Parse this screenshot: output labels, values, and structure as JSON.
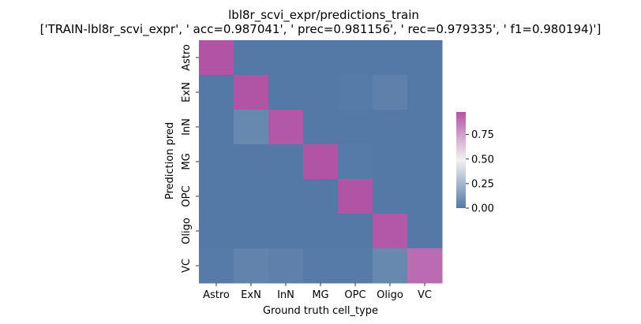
{
  "chart_data": {
    "type": "heatmap",
    "title": "lbl8r_scvi_expr/predictions_train",
    "subtitle": "['TRAIN-lbl8r_scvi_expr', ' acc=0.987041', '  prec=0.981156', ' rec=0.979335', ' f1=0.980194)']",
    "xlabel": "Ground truth cell_type",
    "ylabel": "Prediction pred",
    "x_categories": [
      "Astro",
      "ExN",
      "InN",
      "MG",
      "OPC",
      "Oligo",
      "VC"
    ],
    "y_categories": [
      "Astro",
      "ExN",
      "InN",
      "MG",
      "OPC",
      "Oligo",
      "VC"
    ],
    "values": [
      [
        0.99,
        0.0,
        0.0,
        0.0,
        0.0,
        0.0,
        0.0
      ],
      [
        0.0,
        0.98,
        0.0,
        0.0,
        0.01,
        0.03,
        0.0
      ],
      [
        0.0,
        0.06,
        0.97,
        0.0,
        0.0,
        0.0,
        0.0
      ],
      [
        0.0,
        0.0,
        0.0,
        0.99,
        0.01,
        0.0,
        0.0
      ],
      [
        0.0,
        0.0,
        0.0,
        0.0,
        0.98,
        0.0,
        0.0
      ],
      [
        0.0,
        0.0,
        0.0,
        0.0,
        0.0,
        0.97,
        0.0
      ],
      [
        0.01,
        0.04,
        0.03,
        0.01,
        0.01,
        0.06,
        0.91
      ]
    ],
    "colorbar": {
      "range": [
        0,
        0.98
      ],
      "ticks": [
        0.0,
        0.25,
        0.5,
        0.75
      ],
      "tick_labels": [
        "0.00",
        "0.25",
        "0.50",
        "0.75"
      ],
      "colors": [
        "#5479a6",
        "#f2f2f2",
        "#b254a6"
      ]
    },
    "grid": false,
    "legend": "colorbar right"
  }
}
